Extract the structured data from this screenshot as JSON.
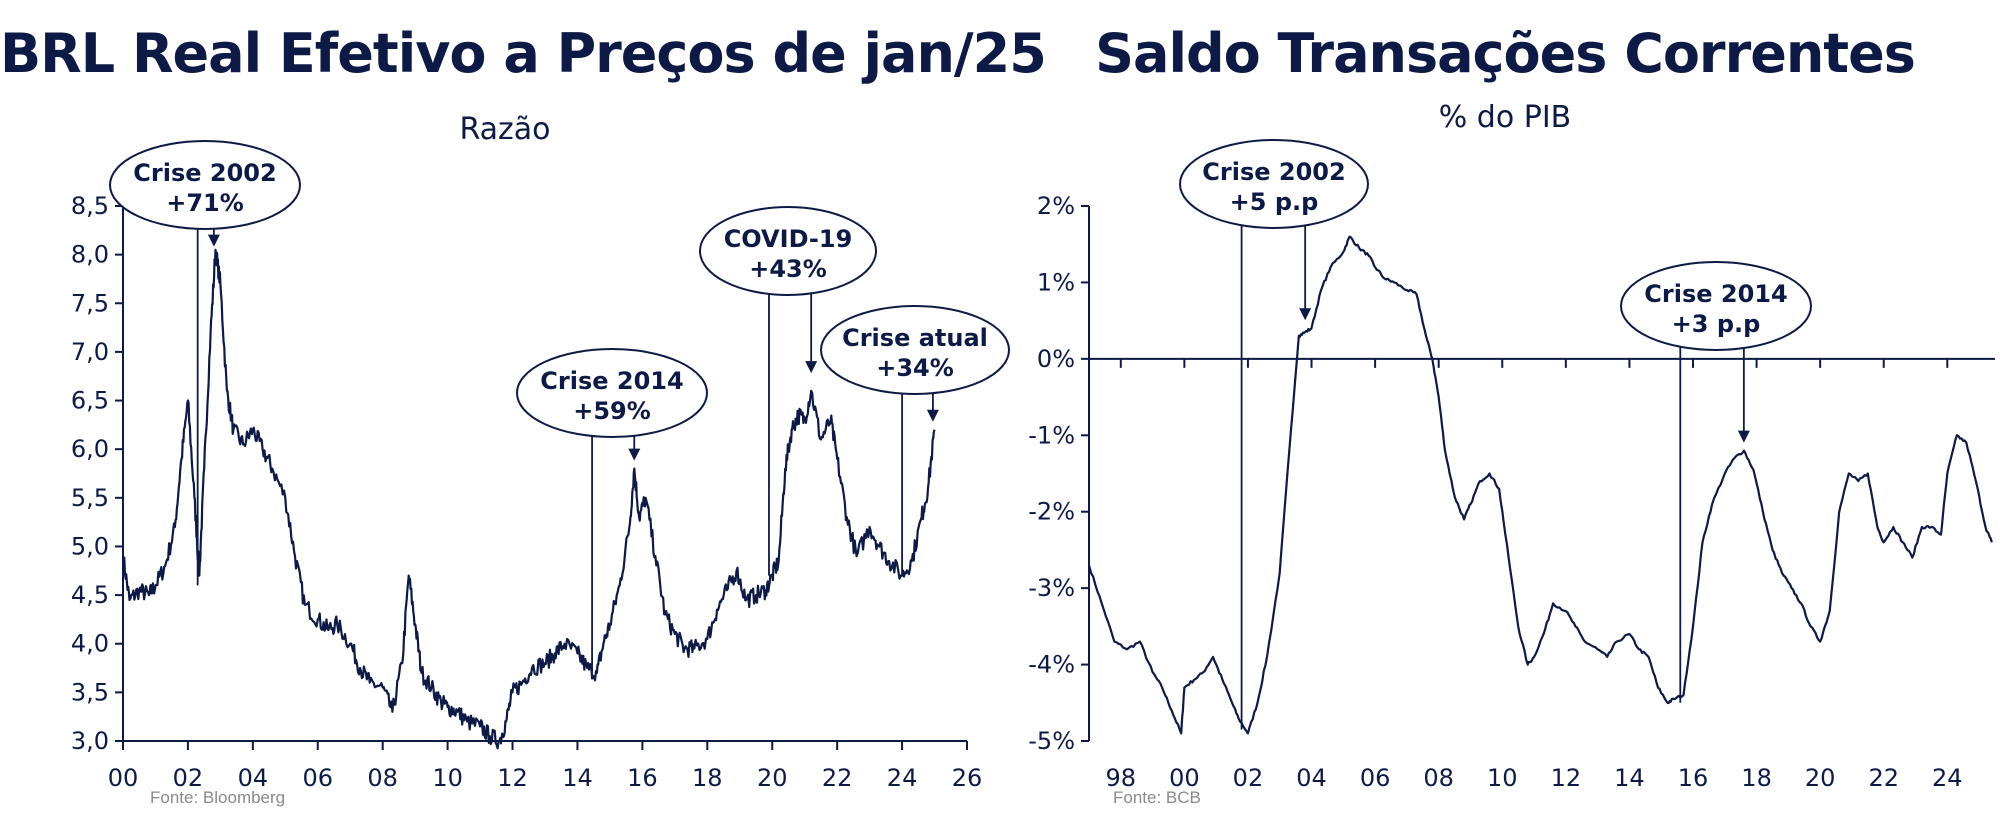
{
  "chart_data": [
    {
      "type": "line",
      "title": "BRL Real Efetivo a Preços de jan/25",
      "subtitle": "Razão",
      "source": "Fonte: Bloomberg",
      "xlim": [
        2000,
        2026
      ],
      "ylim": [
        3.0,
        8.5
      ],
      "x_ticks": [
        2000,
        2002,
        2004,
        2006,
        2008,
        2010,
        2012,
        2014,
        2016,
        2018,
        2020,
        2022,
        2024,
        2026
      ],
      "x_tick_labels": [
        "00",
        "02",
        "04",
        "06",
        "08",
        "10",
        "12",
        "14",
        "16",
        "18",
        "20",
        "22",
        "24",
        "26"
      ],
      "y_ticks": [
        3.0,
        3.5,
        4.0,
        4.5,
        5.0,
        5.5,
        6.0,
        6.5,
        7.0,
        7.5,
        8.0,
        8.5
      ],
      "y_tick_labels": [
        "3,0",
        "3,5",
        "4,0",
        "4,5",
        "5,0",
        "5,5",
        "6,0",
        "6,5",
        "7,0",
        "7,5",
        "8,0",
        "8,5"
      ],
      "grid": false,
      "series": [
        {
          "color": "#0d1a45",
          "x": [
            2000.0,
            2000.2,
            2000.5,
            2000.8,
            2001.0,
            2001.3,
            2001.6,
            2001.8,
            2002.0,
            2002.2,
            2002.35,
            2002.5,
            2002.7,
            2002.85,
            2003.0,
            2003.2,
            2003.4,
            2003.7,
            2004.0,
            2004.3,
            2004.6,
            2005.0,
            2005.3,
            2005.6,
            2006.0,
            2006.3,
            2006.6,
            2007.0,
            2007.3,
            2007.6,
            2008.0,
            2008.3,
            2008.6,
            2008.8,
            2009.0,
            2009.2,
            2009.5,
            2009.8,
            2010.0,
            2010.3,
            2010.6,
            2011.0,
            2011.3,
            2011.6,
            2011.8,
            2012.0,
            2012.3,
            2012.6,
            2013.0,
            2013.3,
            2013.6,
            2014.0,
            2014.3,
            2014.6,
            2014.8,
            2015.0,
            2015.3,
            2015.6,
            2015.75,
            2015.9,
            2016.1,
            2016.4,
            2016.7,
            2017.0,
            2017.3,
            2017.6,
            2018.0,
            2018.3,
            2018.6,
            2018.9,
            2019.2,
            2019.5,
            2019.8,
            2020.0,
            2020.2,
            2020.4,
            2020.6,
            2020.8,
            2021.0,
            2021.2,
            2021.5,
            2021.8,
            2022.0,
            2022.3,
            2022.6,
            2023.0,
            2023.3,
            2023.6,
            2024.0,
            2024.3,
            2024.6,
            2024.8,
            2025.0
          ],
          "y": [
            4.9,
            4.45,
            4.55,
            4.5,
            4.6,
            4.8,
            5.2,
            5.9,
            6.5,
            5.5,
            4.7,
            5.8,
            7.2,
            8.05,
            7.7,
            6.6,
            6.2,
            6.05,
            6.2,
            6.0,
            5.8,
            5.5,
            4.9,
            4.4,
            4.25,
            4.15,
            4.2,
            4.0,
            3.75,
            3.6,
            3.55,
            3.3,
            3.8,
            4.7,
            4.2,
            3.7,
            3.55,
            3.4,
            3.35,
            3.3,
            3.2,
            3.15,
            3.05,
            3.0,
            3.2,
            3.5,
            3.6,
            3.75,
            3.8,
            3.9,
            4.0,
            3.9,
            3.75,
            3.7,
            4.0,
            4.2,
            4.6,
            5.2,
            5.8,
            5.3,
            5.5,
            4.9,
            4.3,
            4.1,
            3.95,
            3.95,
            4.05,
            4.35,
            4.55,
            4.75,
            4.45,
            4.5,
            4.55,
            4.7,
            4.85,
            5.8,
            6.2,
            6.35,
            6.3,
            6.6,
            6.1,
            6.3,
            5.9,
            5.3,
            4.9,
            5.2,
            5.0,
            4.85,
            4.7,
            4.85,
            5.3,
            5.6,
            6.2
          ]
        }
      ],
      "annotations": [
        {
          "line1": "Crise 2002",
          "line2": "+71%",
          "x_start": 2002.3,
          "x_end": 2002.8,
          "y_end": 8.0
        },
        {
          "line1": "Crise 2014",
          "line2": "+59%",
          "x_start": 2014.45,
          "x_end": 2015.75,
          "y_end": 5.8
        },
        {
          "line1": "COVID-19",
          "line2": "+43%",
          "x_start": 2019.9,
          "x_end": 2021.2,
          "y_end": 6.7
        },
        {
          "line1": "Crise atual",
          "line2": "+34%",
          "x_start": 2024.0,
          "x_end": 2024.95,
          "y_end": 6.2
        }
      ]
    },
    {
      "type": "line",
      "title": "Saldo Transações Correntes",
      "subtitle": "% do PIB",
      "source": "Fonte: BCB",
      "xlim": [
        1997,
        2025.5
      ],
      "ylim": [
        -5,
        2
      ],
      "x_ticks": [
        1998,
        2000,
        2002,
        2004,
        2006,
        2008,
        2010,
        2012,
        2014,
        2016,
        2018,
        2020,
        2022,
        2024
      ],
      "x_tick_labels": [
        "98",
        "00",
        "02",
        "04",
        "06",
        "08",
        "10",
        "12",
        "14",
        "16",
        "18",
        "20",
        "22",
        "24"
      ],
      "y_ticks": [
        -5,
        -4,
        -3,
        -2,
        -1,
        0,
        1,
        2
      ],
      "y_tick_labels": [
        "-5%",
        "-4%",
        "-3%",
        "-2%",
        "-1%",
        "0%",
        "1%",
        "2%"
      ],
      "grid": false,
      "series": [
        {
          "color": "#0d1a45",
          "x": [
            1997.0,
            1997.4,
            1997.8,
            1998.2,
            1998.6,
            1999.0,
            1999.3,
            1999.6,
            1999.9,
            2000.0,
            2000.3,
            2000.6,
            2000.9,
            2001.2,
            2001.5,
            2001.7,
            2002.0,
            2002.3,
            2002.6,
            2003.0,
            2003.3,
            2003.6,
            2003.8,
            2004.0,
            2004.3,
            2004.6,
            2005.0,
            2005.2,
            2005.5,
            2005.8,
            2006.0,
            2006.3,
            2006.6,
            2007.0,
            2007.3,
            2007.6,
            2007.8,
            2008.0,
            2008.2,
            2008.5,
            2008.8,
            2009.0,
            2009.3,
            2009.6,
            2009.9,
            2010.2,
            2010.5,
            2010.8,
            2011.0,
            2011.3,
            2011.6,
            2012.0,
            2012.3,
            2012.6,
            2013.0,
            2013.3,
            2013.6,
            2014.0,
            2014.3,
            2014.6,
            2014.9,
            2015.2,
            2015.4,
            2015.7,
            2016.0,
            2016.3,
            2016.6,
            2017.0,
            2017.3,
            2017.6,
            2017.9,
            2018.2,
            2018.5,
            2018.8,
            2019.1,
            2019.4,
            2019.7,
            2020.0,
            2020.3,
            2020.6,
            2020.9,
            2021.2,
            2021.5,
            2021.8,
            2022.0,
            2022.3,
            2022.6,
            2022.9,
            2023.2,
            2023.5,
            2023.8,
            2024.0,
            2024.3,
            2024.6,
            2024.9,
            2025.2,
            2025.4
          ],
          "y": [
            -2.7,
            -3.2,
            -3.7,
            -3.8,
            -3.7,
            -4.1,
            -4.3,
            -4.6,
            -4.9,
            -4.3,
            -4.2,
            -4.1,
            -3.9,
            -4.2,
            -4.5,
            -4.7,
            -4.9,
            -4.5,
            -3.9,
            -2.8,
            -1.2,
            0.3,
            0.35,
            0.4,
            0.9,
            1.2,
            1.4,
            1.6,
            1.45,
            1.35,
            1.2,
            1.05,
            1.0,
            0.9,
            0.85,
            0.3,
            0.0,
            -0.5,
            -1.2,
            -1.8,
            -2.1,
            -1.9,
            -1.6,
            -1.5,
            -1.7,
            -2.6,
            -3.5,
            -4.0,
            -3.9,
            -3.6,
            -3.2,
            -3.3,
            -3.5,
            -3.7,
            -3.8,
            -3.9,
            -3.7,
            -3.6,
            -3.8,
            -3.9,
            -4.3,
            -4.5,
            -4.45,
            -4.4,
            -3.5,
            -2.4,
            -1.9,
            -1.5,
            -1.3,
            -1.2,
            -1.45,
            -2.0,
            -2.5,
            -2.8,
            -3.0,
            -3.2,
            -3.5,
            -3.7,
            -3.3,
            -2.0,
            -1.5,
            -1.6,
            -1.5,
            -2.2,
            -2.4,
            -2.2,
            -2.4,
            -2.6,
            -2.2,
            -2.2,
            -2.3,
            -1.5,
            -1.0,
            -1.1,
            -1.6,
            -2.2,
            -2.4
          ]
        }
      ],
      "annotations": [
        {
          "line1": "Crise 2002",
          "line2": "+5 p.p",
          "x_start": 2001.8,
          "x_end": 2003.8,
          "y_end": 0.4
        },
        {
          "line1": "Crise 2014",
          "line2": "+3 p.p",
          "x_start": 2015.6,
          "x_end": 2017.6,
          "y_end": -1.2
        }
      ]
    }
  ]
}
